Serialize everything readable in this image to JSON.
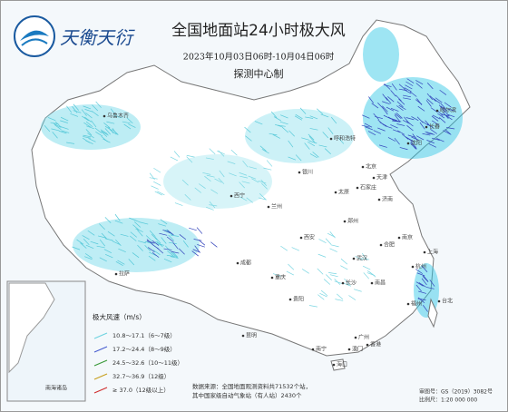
{
  "header": {
    "logo": "天衡天衍",
    "title": "全国地面站24小时极大风",
    "period": "2023年10月03日06时-10月04日06时",
    "producer": "探测中心制"
  },
  "legend": {
    "title": "极大风速（m/s）",
    "items": [
      {
        "label": "10.8～17.1（6～7级）",
        "color": "#6fd3e0"
      },
      {
        "label": "17.2～24.4（8～9级）",
        "color": "#4a5fd0"
      },
      {
        "label": "24.5～32.6（10～11级）",
        "color": "#3a9a3a"
      },
      {
        "label": "32.7～36.9（12级）",
        "color": "#c8a020"
      },
      {
        "label": "≥ 37.0（12级以上）",
        "color": "#d03030"
      }
    ]
  },
  "notes": [
    "数据来源：全国地面观测资料共71532个站，",
    "其中国家级自动气象站（有人站）2430个"
  ],
  "approval": "审图号：GS（2019）3082号",
  "scale": "比例尺：1:20 000 000",
  "inset_label": "南海诸岛",
  "cities": [
    "乌鲁木齐",
    "拉萨",
    "西宁",
    "兰州",
    "成都",
    "重庆",
    "昆明",
    "贵阳",
    "西安",
    "银川",
    "呼和浩特",
    "北京",
    "天津",
    "石家庄",
    "太原",
    "济南",
    "郑州",
    "哈尔滨",
    "长春",
    "沈阳",
    "武汉",
    "长沙",
    "南昌",
    "合肥",
    "南京",
    "上海",
    "杭州",
    "福州",
    "台北",
    "广州",
    "南宁",
    "海口",
    "香港",
    "澳门"
  ]
}
